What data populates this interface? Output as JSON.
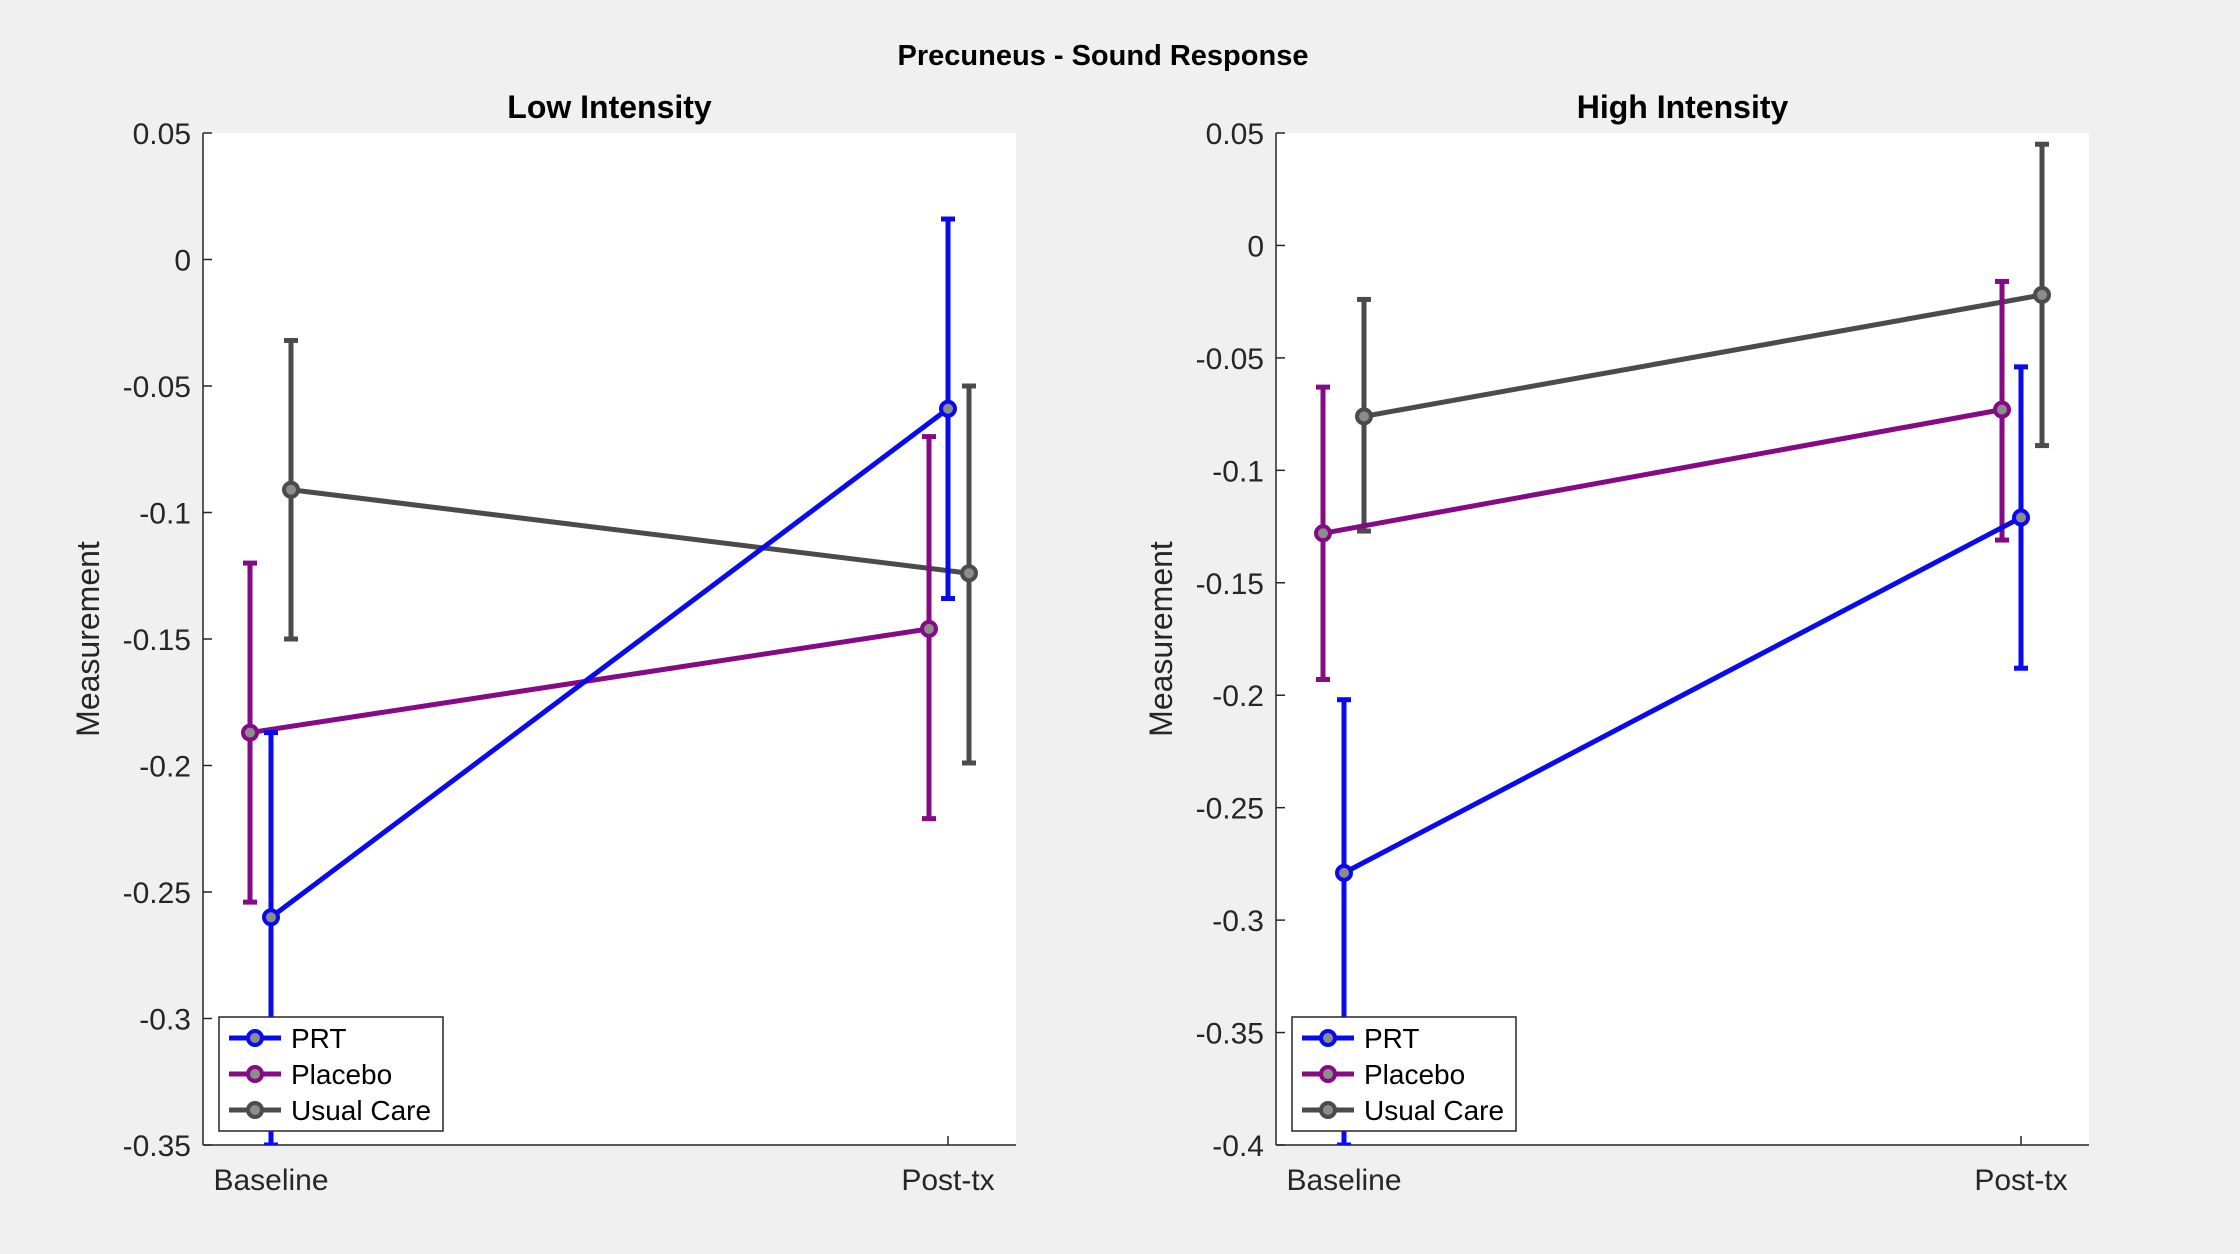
{
  "figure": {
    "title": "Precuneus - Sound Response"
  },
  "colors": {
    "figure_background": "#f0f0f0",
    "axes_background": "#ffffff",
    "PRT": "#0a0aee",
    "Placebo": "#850a85",
    "Usual Care": "#4b4b4b"
  },
  "chart_data": [
    {
      "type": "line",
      "title": "Low Intensity",
      "xlabel": "",
      "ylabel": "Measurement",
      "categories": [
        "Baseline",
        "Post-tx"
      ],
      "ylim": [
        -0.35,
        0.05
      ],
      "yticks": [
        "0.05",
        "0",
        "-0.05",
        "-0.1",
        "-0.15",
        "-0.2",
        "-0.25",
        "-0.3",
        "-0.35"
      ],
      "grid": false,
      "legend": "bottom-left",
      "series": [
        {
          "name": "PRT",
          "values": [
            -0.26,
            -0.059
          ],
          "error_low": [
            -0.35,
            -0.134
          ],
          "error_high": [
            -0.187,
            0.016
          ]
        },
        {
          "name": "Placebo",
          "values": [
            -0.187,
            -0.146
          ],
          "error_low": [
            -0.254,
            -0.221
          ],
          "error_high": [
            -0.12,
            -0.07
          ]
        },
        {
          "name": "Usual Care",
          "values": [
            -0.091,
            -0.124
          ],
          "error_low": [
            -0.15,
            -0.199
          ],
          "error_high": [
            -0.032,
            -0.05
          ]
        }
      ]
    },
    {
      "type": "line",
      "title": "High Intensity",
      "xlabel": "",
      "ylabel": "Measurement",
      "categories": [
        "Baseline",
        "Post-tx"
      ],
      "ylim": [
        -0.4,
        0.05
      ],
      "yticks": [
        "0.05",
        "0",
        "-0.05",
        "-0.1",
        "-0.15",
        "-0.2",
        "-0.25",
        "-0.3",
        "-0.35",
        "-0.4"
      ],
      "grid": false,
      "legend": "bottom-left",
      "series": [
        {
          "name": "PRT",
          "values": [
            -0.279,
            -0.121
          ],
          "error_low": [
            -0.4,
            -0.188
          ],
          "error_high": [
            -0.202,
            -0.054
          ]
        },
        {
          "name": "Placebo",
          "values": [
            -0.128,
            -0.073
          ],
          "error_low": [
            -0.193,
            -0.131
          ],
          "error_high": [
            -0.063,
            -0.016
          ]
        },
        {
          "name": "Usual Care",
          "values": [
            -0.076,
            -0.022
          ],
          "error_low": [
            -0.127,
            -0.089
          ],
          "error_high": [
            -0.024,
            0.045
          ]
        }
      ]
    }
  ]
}
